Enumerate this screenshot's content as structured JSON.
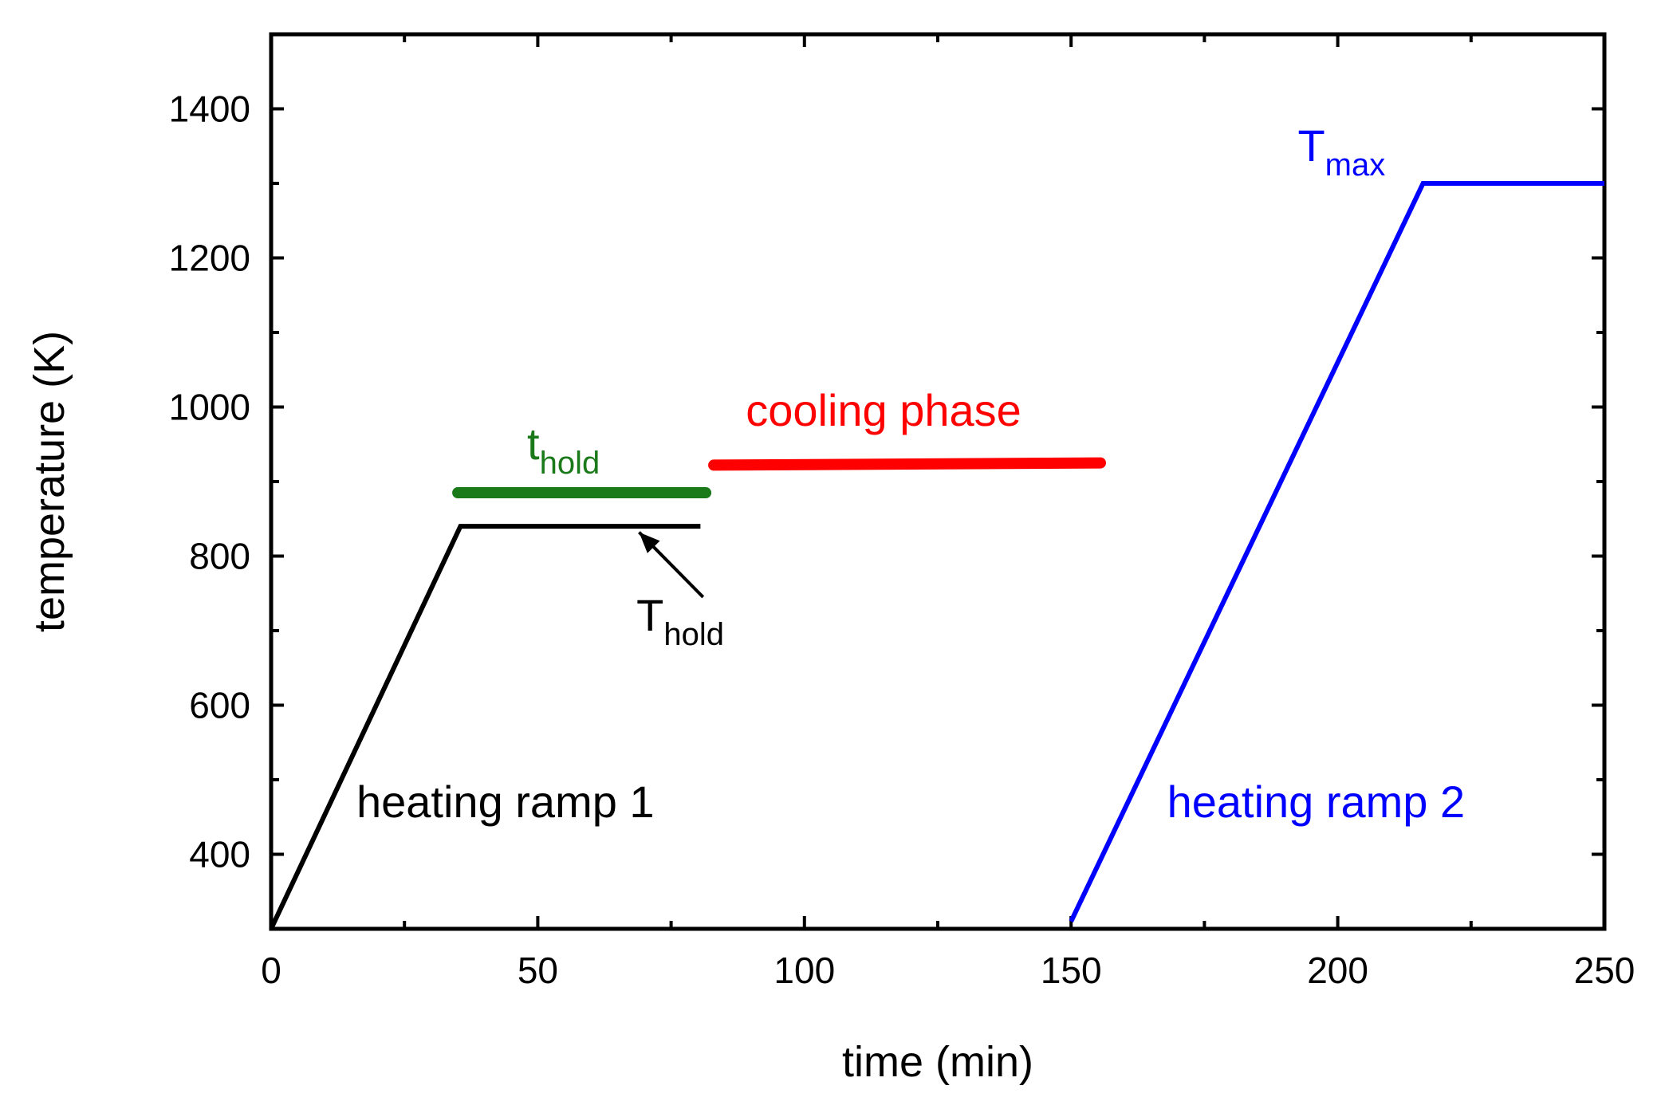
{
  "chart_data": {
    "type": "line",
    "title": "",
    "xlabel": "time (min)",
    "ylabel": "temperature (K)",
    "xlim": [
      0,
      250
    ],
    "ylim": [
      300,
      1500
    ],
    "x_ticks": [
      0,
      50,
      100,
      150,
      200,
      250
    ],
    "y_ticks": [
      400,
      600,
      800,
      1000,
      1200,
      1400
    ],
    "x_tick_labels": [
      "0",
      "50",
      "100",
      "150",
      "200",
      "250"
    ],
    "y_tick_labels": [
      "400",
      "600",
      "800",
      "1000",
      "1200",
      "1400"
    ],
    "grid": false,
    "series": [
      {
        "name": "heating ramp 1",
        "color": "#000000",
        "x": [
          0,
          35.5,
          80.5
        ],
        "y": [
          300,
          840,
          840
        ]
      },
      {
        "name": "heating ramp 2",
        "color": "#0000ff",
        "x": [
          150,
          216,
          250
        ],
        "y": [
          310,
          1300,
          1300
        ]
      }
    ],
    "bars": [
      {
        "name": "t_hold",
        "color": "#1a7a1a",
        "x": [
          35,
          81.5
        ],
        "y": 885
      },
      {
        "name": "cooling phase",
        "color": "#ff0000",
        "x": [
          83,
          155.5
        ],
        "y": [
          922,
          925
        ]
      }
    ],
    "annotations": {
      "heating_ramp_1": {
        "text": "heating ramp 1",
        "color": "#000000",
        "x": 16,
        "y": 450
      },
      "heating_ramp_2": {
        "text": "heating ramp 2",
        "color": "#0000ff",
        "x": 168,
        "y": 450
      },
      "cooling_phase": {
        "text": "cooling phase",
        "color": "#ff0000",
        "x": 89,
        "y": 975
      },
      "t_hold": {
        "text": "t",
        "sub": "hold",
        "color": "#1a7a1a",
        "x": 48,
        "y": 930
      },
      "T_hold": {
        "text": "T",
        "sub": "hold",
        "color": "#000000",
        "x": 68.5,
        "y": 700
      },
      "T_max": {
        "text": "T",
        "sub": "max",
        "color": "#0000ff",
        "x": 192.5,
        "y": 1330
      }
    },
    "arrow": {
      "from": [
        81,
        745
      ],
      "to": [
        69,
        832
      ],
      "color": "#000000"
    }
  }
}
